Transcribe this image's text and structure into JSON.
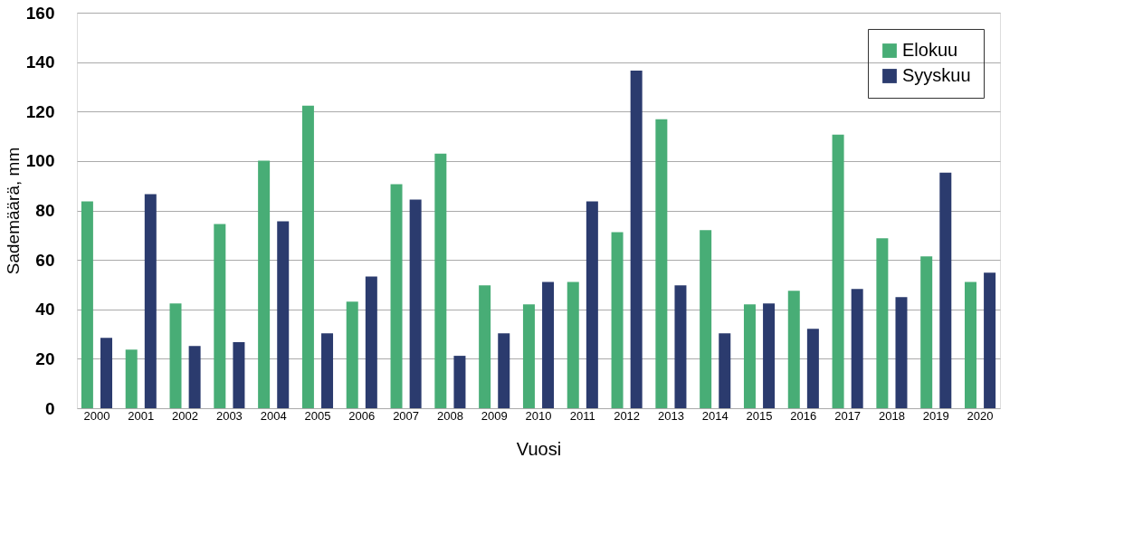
{
  "chart_data": {
    "type": "bar",
    "xlabel": "Vuosi",
    "ylabel": "Sademäärä, mm",
    "categories": [
      "2000",
      "2001",
      "2002",
      "2003",
      "2004",
      "2005",
      "2006",
      "2007",
      "2008",
      "2009",
      "2010",
      "2011",
      "2012",
      "2013",
      "2014",
      "2015",
      "2016",
      "2017",
      "2018",
      "2019",
      "2020"
    ],
    "series": [
      {
        "name": "Elokuu",
        "color": "#48ad76",
        "values": [
          83.7,
          23.7,
          42.4,
          74.5,
          100.1,
          122.4,
          43.1,
          90.6,
          103,
          49.7,
          42,
          51.1,
          71.2,
          116.9,
          72,
          42,
          47.5,
          110.7,
          68.7,
          61.4,
          51.1
        ]
      },
      {
        "name": "Syyskuu",
        "color": "#2b3b6e",
        "values": [
          28.5,
          86.6,
          25.2,
          26.7,
          75.6,
          30.3,
          53.3,
          84.4,
          21.2,
          30.3,
          51.1,
          83.7,
          136.6,
          49.7,
          30.3,
          42.4,
          32.1,
          48.2,
          44.9,
          95.3,
          54.8
        ]
      }
    ],
    "ylim": [
      0,
      160
    ],
    "yticks": [
      0,
      20,
      40,
      60,
      80,
      100,
      120,
      140,
      160
    ],
    "grid": "y",
    "legend": "top right"
  }
}
